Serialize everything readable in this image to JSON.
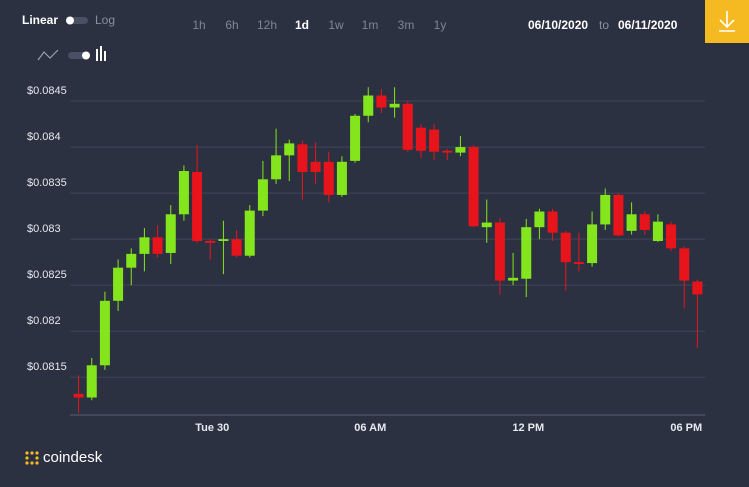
{
  "toolbar": {
    "scale_options": [
      "Linear",
      "Log"
    ],
    "ranges": [
      "1h",
      "6h",
      "12h",
      "1d",
      "1w",
      "1m",
      "3m",
      "1y"
    ],
    "active_range": 3,
    "date_from": "06/10/2020",
    "date_separator": "to",
    "date_to": "06/11/2020"
  },
  "brand": "coindesk",
  "chart_data": {
    "type": "candlestick",
    "categories": [
      null,
      null,
      null,
      null,
      null,
      null,
      null,
      null,
      null,
      null,
      "Tue 30",
      null,
      null,
      null,
      null,
      null,
      null,
      null,
      null,
      null,
      null,
      null,
      "06 AM",
      null,
      null,
      null,
      null,
      null,
      null,
      null,
      null,
      null,
      null,
      null,
      "12 PM",
      null,
      null,
      null,
      null,
      null,
      null,
      null,
      null,
      null,
      null,
      null,
      "06 PM",
      null
    ],
    "open": [
      0.08132,
      0.08128,
      0.08163,
      0.08233,
      0.08269,
      0.08284,
      0.08302,
      0.08285,
      0.08327,
      0.08373,
      0.08298,
      0.08298,
      0.083,
      0.08282,
      0.08331,
      0.08365,
      0.08391,
      0.08403,
      0.08384,
      0.08384,
      0.08348,
      0.08385,
      0.08434,
      0.08456,
      0.08443,
      0.08447,
      0.08421,
      0.08419,
      0.08396,
      0.08394,
      0.084,
      0.08313,
      0.08318,
      0.08255,
      0.08257,
      0.08313,
      0.0833,
      0.08307,
      0.08275,
      0.08274,
      0.08316,
      0.08348,
      0.08309,
      0.08327,
      0.08298,
      0.08316,
      0.0829,
      0.08254
    ],
    "high": [
      0.08152,
      0.08171,
      0.08243,
      0.08278,
      0.0829,
      0.08312,
      0.08315,
      0.08337,
      0.0838,
      0.08402,
      0.083,
      0.0832,
      0.0831,
      0.08337,
      0.08385,
      0.0842,
      0.08408,
      0.08407,
      0.08405,
      0.08395,
      0.0839,
      0.08436,
      0.08465,
      0.08463,
      0.08465,
      0.0845,
      0.08425,
      0.08425,
      0.08398,
      0.08412,
      0.08402,
      0.08343,
      0.08323,
      0.08285,
      0.08322,
      0.08333,
      0.08333,
      0.08309,
      0.08307,
      0.0833,
      0.08355,
      0.0835,
      0.0834,
      0.0833,
      0.08327,
      0.08319,
      0.08292,
      0.08256
    ],
    "low": [
      0.08111,
      0.08125,
      0.08158,
      0.08222,
      0.0825,
      0.08265,
      0.0828,
      0.08273,
      0.0832,
      0.08296,
      0.08278,
      0.08262,
      0.0828,
      0.0828,
      0.08325,
      0.0836,
      0.08363,
      0.08343,
      0.0836,
      0.0834,
      0.08346,
      0.08383,
      0.08427,
      0.08437,
      0.08432,
      0.08395,
      0.08388,
      0.08386,
      0.08386,
      0.0839,
      0.08313,
      0.08296,
      0.0824,
      0.0825,
      0.08237,
      0.083,
      0.08298,
      0.08244,
      0.08265,
      0.0827,
      0.0831,
      0.08303,
      0.08305,
      0.08305,
      0.08297,
      0.08287,
      0.08225,
      0.08182
    ],
    "close": [
      0.08128,
      0.08163,
      0.08233,
      0.08269,
      0.08284,
      0.08302,
      0.08284,
      0.08327,
      0.08374,
      0.08298,
      0.08296,
      0.083,
      0.08282,
      0.08331,
      0.08365,
      0.08391,
      0.08404,
      0.08373,
      0.08373,
      0.08348,
      0.08384,
      0.08434,
      0.08456,
      0.08443,
      0.08447,
      0.08397,
      0.08396,
      0.08395,
      0.08394,
      0.084,
      0.08314,
      0.08318,
      0.08255,
      0.08258,
      0.08313,
      0.0833,
      0.08307,
      0.08275,
      0.08273,
      0.08316,
      0.08348,
      0.08304,
      0.08327,
      0.0831,
      0.08319,
      0.0829,
      0.08255,
      0.0824
    ],
    "up_color": "#84e51c",
    "down_color": "#e8141b",
    "ylim": [
      0.08109,
      0.085
    ],
    "yticks": [
      {
        "value": 0.0815,
        "label": "$0.0815"
      },
      {
        "value": 0.082,
        "label": "$0.082"
      },
      {
        "value": 0.0825,
        "label": "$0.0825"
      },
      {
        "value": 0.083,
        "label": "$0.083"
      },
      {
        "value": 0.0835,
        "label": "$0.0835"
      },
      {
        "value": 0.084,
        "label": "$0.084"
      },
      {
        "value": 0.0845,
        "label": "$0.0845"
      }
    ],
    "grid": true
  }
}
